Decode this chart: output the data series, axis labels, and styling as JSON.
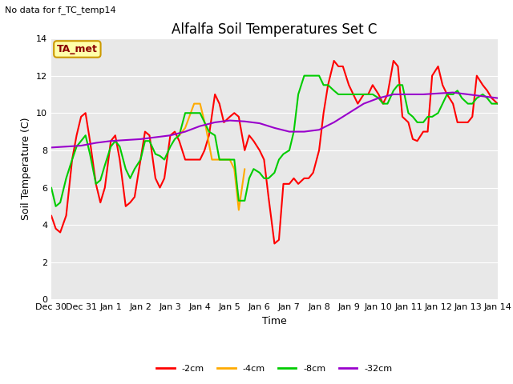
{
  "title": "Alfalfa Soil Temperatures Set C",
  "xlabel": "Time",
  "ylabel": "Soil Temperature (C)",
  "top_left_note": "No data for f_TC_temp14",
  "legend_label_note": "TA_met",
  "ylim": [
    0,
    14
  ],
  "yticks": [
    0,
    2,
    4,
    6,
    8,
    10,
    12,
    14
  ],
  "x_labels": [
    "Dec 30",
    "Dec 31",
    "Jan 1",
    "Jan 2",
    "Jan 3",
    "Jan 4",
    "Jan 5",
    "Jan 6",
    "Jan 7",
    "Jan 8",
    "Jan 9",
    "Jan 10",
    "Jan 11",
    "Jan 12",
    "Jan 13",
    "Jan 14"
  ],
  "x_values": [
    0,
    1,
    2,
    3,
    4,
    5,
    6,
    7,
    8,
    9,
    10,
    11,
    12,
    13,
    14,
    15
  ],
  "series": {
    "-2cm": {
      "color": "#ff0000",
      "x": [
        0.0,
        0.15,
        0.3,
        0.5,
        0.7,
        0.85,
        1.0,
        1.15,
        1.3,
        1.5,
        1.65,
        1.8,
        2.0,
        2.15,
        2.3,
        2.5,
        2.65,
        2.8,
        3.0,
        3.15,
        3.3,
        3.5,
        3.65,
        3.8,
        4.0,
        4.15,
        4.3,
        4.5,
        4.65,
        4.8,
        5.0,
        5.15,
        5.3,
        5.5,
        5.65,
        5.8,
        6.0,
        6.15,
        6.3,
        6.5,
        6.65,
        6.8,
        7.0,
        7.15,
        7.3,
        7.5,
        7.65,
        7.8,
        8.0,
        8.15,
        8.3,
        8.5,
        8.65,
        8.8,
        9.0,
        9.15,
        9.3,
        9.5,
        9.65,
        9.8,
        10.0,
        10.15,
        10.3,
        10.5,
        10.65,
        10.8,
        11.0,
        11.15,
        11.3,
        11.5,
        11.65,
        11.8,
        12.0,
        12.15,
        12.3,
        12.5,
        12.65,
        12.8,
        13.0,
        13.15,
        13.3,
        13.5,
        13.65,
        13.8,
        14.0,
        14.15,
        14.3,
        14.5,
        14.65,
        14.8,
        15.0
      ],
      "y": [
        4.5,
        3.8,
        3.6,
        4.5,
        7.5,
        8.8,
        9.8,
        10.0,
        8.5,
        6.2,
        5.2,
        6.0,
        8.5,
        8.8,
        7.5,
        5.0,
        5.2,
        5.5,
        7.5,
        9.0,
        8.8,
        6.5,
        6.0,
        6.5,
        8.8,
        9.0,
        8.5,
        7.5,
        7.5,
        7.5,
        7.5,
        8.0,
        8.8,
        11.0,
        10.5,
        9.5,
        9.8,
        10.0,
        9.8,
        8.0,
        8.8,
        8.5,
        8.0,
        7.5,
        5.5,
        3.0,
        3.2,
        6.2,
        6.2,
        6.5,
        6.2,
        6.5,
        6.5,
        6.8,
        8.0,
        10.0,
        11.5,
        12.8,
        12.5,
        12.5,
        11.5,
        11.0,
        10.5,
        11.0,
        11.0,
        11.5,
        11.0,
        10.5,
        11.0,
        12.8,
        12.5,
        9.8,
        9.5,
        8.6,
        8.5,
        9.0,
        9.0,
        12.0,
        12.5,
        11.5,
        11.0,
        10.5,
        9.5,
        9.5,
        9.5,
        9.8,
        12.0,
        11.5,
        11.2,
        10.8,
        10.5
      ]
    },
    "-4cm": {
      "color": "#ffaa00",
      "x": [
        4.3,
        4.5,
        4.8,
        5.0,
        5.2,
        5.4,
        5.55,
        5.7,
        5.85,
        6.0,
        6.15,
        6.3,
        6.5
      ],
      "y": [
        8.8,
        9.2,
        10.5,
        10.5,
        9.2,
        7.5,
        7.5,
        7.5,
        7.5,
        7.5,
        7.0,
        4.8,
        7.0
      ]
    },
    "-8cm": {
      "color": "#00cc00",
      "x": [
        0.0,
        0.15,
        0.3,
        0.5,
        0.7,
        0.85,
        1.0,
        1.15,
        1.3,
        1.5,
        1.65,
        1.8,
        2.0,
        2.15,
        2.3,
        2.5,
        2.65,
        2.8,
        3.0,
        3.15,
        3.3,
        3.5,
        3.65,
        3.8,
        4.0,
        4.15,
        4.3,
        4.5,
        4.65,
        4.8,
        5.0,
        5.15,
        5.3,
        5.5,
        5.65,
        5.8,
        6.0,
        6.15,
        6.3,
        6.5,
        6.65,
        6.8,
        7.0,
        7.15,
        7.3,
        7.5,
        7.65,
        7.8,
        8.0,
        8.15,
        8.3,
        8.5,
        8.65,
        8.8,
        9.0,
        9.15,
        9.3,
        9.5,
        9.65,
        9.8,
        10.0,
        10.15,
        10.3,
        10.5,
        10.65,
        10.8,
        11.0,
        11.15,
        11.3,
        11.5,
        11.65,
        11.8,
        12.0,
        12.15,
        12.3,
        12.5,
        12.65,
        12.8,
        13.0,
        13.15,
        13.3,
        13.5,
        13.65,
        13.8,
        14.0,
        14.15,
        14.3,
        14.5,
        14.65,
        14.8,
        15.0
      ],
      "y": [
        6.0,
        5.0,
        5.2,
        6.5,
        7.5,
        8.2,
        8.5,
        8.8,
        7.8,
        6.2,
        6.4,
        7.2,
        8.2,
        8.5,
        8.2,
        7.0,
        6.5,
        7.0,
        7.5,
        8.5,
        8.5,
        7.8,
        7.7,
        7.5,
        8.2,
        8.6,
        8.8,
        10.0,
        10.0,
        10.0,
        10.0,
        9.5,
        9.0,
        8.8,
        7.5,
        7.5,
        7.5,
        7.5,
        5.3,
        5.3,
        6.5,
        7.0,
        6.8,
        6.5,
        6.5,
        6.8,
        7.5,
        7.8,
        8.0,
        9.0,
        11.0,
        12.0,
        12.0,
        12.0,
        12.0,
        11.5,
        11.5,
        11.2,
        11.0,
        11.0,
        11.0,
        11.0,
        11.0,
        11.0,
        11.0,
        11.0,
        10.8,
        10.5,
        10.5,
        11.2,
        11.5,
        11.5,
        10.0,
        9.8,
        9.5,
        9.5,
        9.8,
        9.8,
        10.0,
        10.5,
        11.0,
        11.0,
        11.2,
        10.8,
        10.5,
        10.5,
        10.8,
        11.0,
        10.8,
        10.5,
        10.5
      ]
    },
    "-32cm": {
      "color": "#9900cc",
      "x": [
        0.0,
        0.5,
        1.0,
        1.5,
        2.0,
        2.5,
        3.0,
        3.5,
        4.0,
        4.5,
        5.0,
        5.5,
        6.0,
        6.5,
        7.0,
        7.5,
        8.0,
        8.5,
        9.0,
        9.5,
        10.0,
        10.5,
        11.0,
        11.5,
        12.0,
        12.5,
        13.0,
        13.5,
        14.0,
        14.5,
        15.0
      ],
      "y": [
        8.15,
        8.2,
        8.25,
        8.4,
        8.5,
        8.55,
        8.6,
        8.7,
        8.8,
        9.0,
        9.3,
        9.5,
        9.6,
        9.55,
        9.45,
        9.2,
        9.0,
        9.0,
        9.1,
        9.5,
        10.0,
        10.5,
        10.8,
        11.0,
        11.0,
        11.0,
        11.05,
        11.1,
        11.0,
        10.9,
        10.8
      ]
    }
  },
  "figure_bg": "#ffffff",
  "plot_bg_color": "#e8e8e8",
  "title_fontsize": 12,
  "axis_label_fontsize": 9,
  "tick_fontsize": 8,
  "note_fontsize": 8,
  "ta_met_fontsize": 9
}
